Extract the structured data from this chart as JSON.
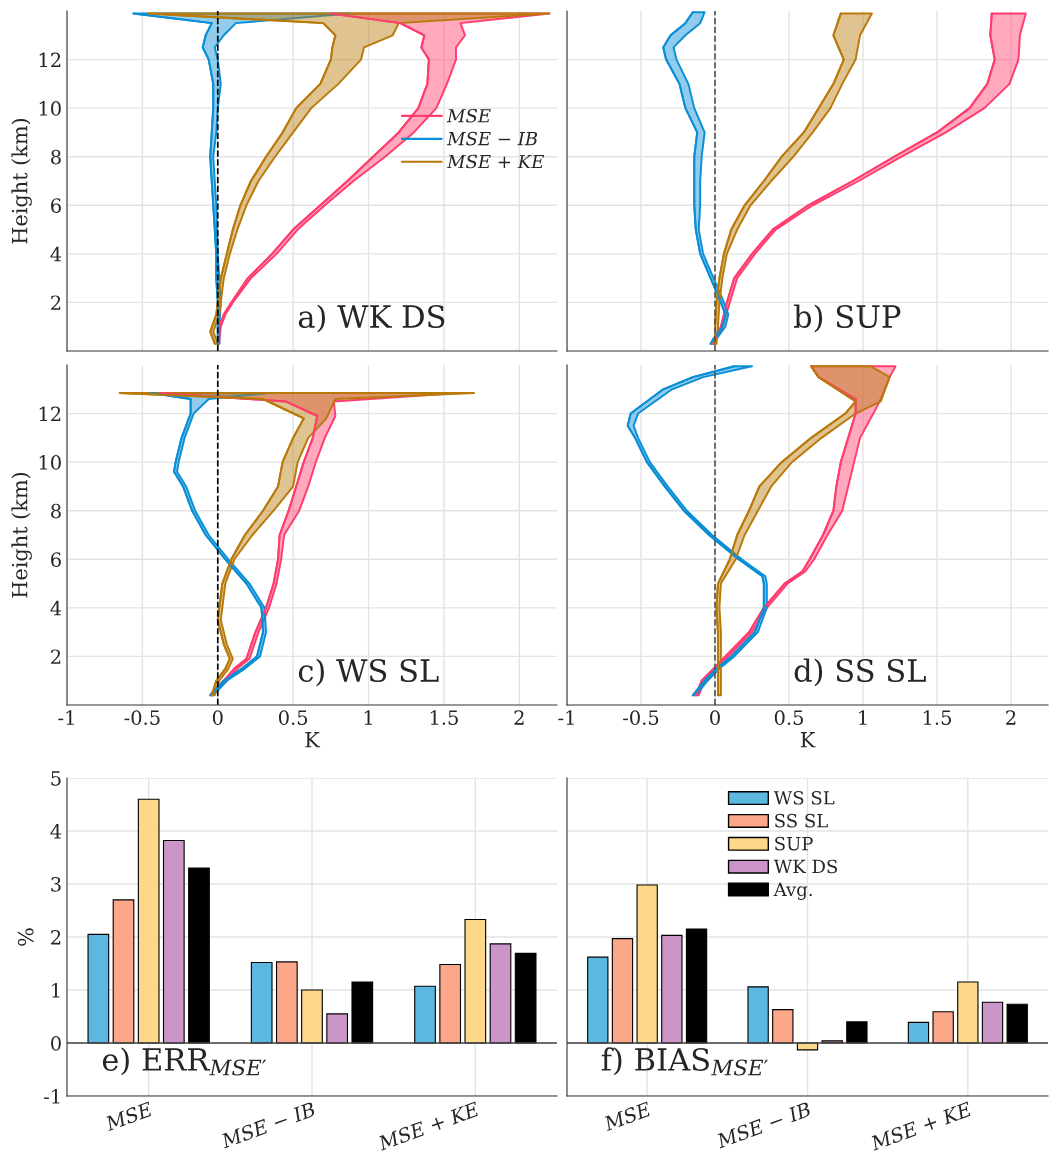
{
  "chart_data": [
    {
      "type": "line",
      "orientation": "horizontal",
      "annotations": [
        "a) WK DS"
      ],
      "ylabel": "Height (km)",
      "xlim": [
        -1,
        2.25
      ],
      "ylim": [
        0,
        14
      ],
      "xticks": [
        -1,
        -0.5,
        0,
        0.5,
        1,
        1.5,
        2
      ],
      "yticks": [
        2,
        4,
        6,
        8,
        10,
        12
      ],
      "tick_labels": "y",
      "grid": true,
      "legend": "center right",
      "ref_lines": [
        {
          "axis": "x",
          "value": 0,
          "color": "#000000",
          "line_style": "dashed"
        }
      ],
      "series": [
        {
          "name": "MSE",
          "color": "#ff3d6e",
          "x": [
            0.3,
            1,
            1.5,
            2,
            3,
            4,
            5,
            6,
            7,
            8,
            9,
            10,
            11,
            12,
            12.5,
            13,
            13.5,
            13.9
          ],
          "values": [
            0,
            0.01,
            0.04,
            0.09,
            0.2,
            0.36,
            0.5,
            0.68,
            0.86,
            1.03,
            1.2,
            1.33,
            1.39,
            1.4,
            1.35,
            1.37,
            1.21,
            0.75
          ],
          "lower": [
            0,
            0.01,
            0.04,
            0.09,
            0.2,
            0.36,
            0.5,
            0.68,
            0.86,
            1.03,
            1.2,
            1.33,
            1.39,
            1.4,
            1.35,
            1.37,
            1.21,
            0.75
          ],
          "upper": [
            0.01,
            0.02,
            0.05,
            0.1,
            0.22,
            0.39,
            0.53,
            0.71,
            0.9,
            1.11,
            1.3,
            1.45,
            1.52,
            1.58,
            1.58,
            1.64,
            1.61,
            2.2
          ]
        },
        {
          "name": "MSE − IB",
          "color": "#0a8fd6",
          "x": [
            0.3,
            1,
            2,
            3,
            4,
            6,
            8,
            9,
            10,
            11,
            12,
            12.5,
            13,
            13.5,
            13.9
          ],
          "values": [
            0,
            0,
            0,
            -0.01,
            -0.01,
            -0.03,
            -0.05,
            -0.04,
            -0.03,
            -0.03,
            -0.06,
            -0.1,
            -0.08,
            -0.04,
            -0.56
          ],
          "lower": [
            0,
            0,
            0,
            -0.01,
            -0.01,
            -0.03,
            -0.05,
            -0.04,
            -0.03,
            -0.03,
            -0.06,
            -0.1,
            -0.08,
            -0.04,
            -0.56
          ],
          "upper": [
            0.01,
            0.01,
            0.02,
            0.01,
            0.0,
            -0.01,
            -0.03,
            -0.01,
            0.0,
            0.02,
            0.0,
            -0.02,
            0.04,
            0.12,
            0.88
          ]
        },
        {
          "name": "MSE + KE",
          "color": "#b97a0a",
          "x": [
            0.3,
            0.8,
            1.5,
            2,
            3,
            4,
            5,
            6,
            7,
            8,
            9,
            10,
            11,
            12,
            12.5,
            13,
            13.5,
            13.9
          ],
          "values": [
            -0.02,
            -0.05,
            -0.01,
            0.0,
            0.02,
            0.06,
            0.1,
            0.15,
            0.22,
            0.32,
            0.43,
            0.52,
            0.68,
            0.75,
            0.76,
            0.78,
            0.7,
            -0.46
          ],
          "lower": [
            -0.02,
            -0.05,
            -0.01,
            0.0,
            0.02,
            0.06,
            0.1,
            0.15,
            0.22,
            0.32,
            0.43,
            0.52,
            0.68,
            0.75,
            0.76,
            0.78,
            0.7,
            -0.46
          ],
          "upper": [
            0.0,
            -0.03,
            0.01,
            0.02,
            0.04,
            0.08,
            0.13,
            0.19,
            0.27,
            0.38,
            0.5,
            0.62,
            0.8,
            0.95,
            0.97,
            1.16,
            1.2,
            2.2
          ]
        }
      ]
    },
    {
      "type": "line",
      "orientation": "horizontal",
      "annotations": [
        "b) SUP"
      ],
      "xlim": [
        -1,
        2.25
      ],
      "ylim": [
        0,
        14
      ],
      "xticks": [
        -1,
        -0.5,
        0,
        0.5,
        1,
        1.5,
        2
      ],
      "yticks": [
        2,
        4,
        6,
        8,
        10,
        12
      ],
      "tick_labels": false,
      "grid": true,
      "ref_lines": [
        {
          "axis": "x",
          "value": 0,
          "color": "#555555",
          "line_style": "dashed"
        }
      ],
      "series": [
        {
          "color": "#ff3d6e",
          "x": [
            0.3,
            0.5,
            1,
            2,
            3,
            4,
            5,
            6,
            7,
            8,
            9,
            10,
            11,
            12,
            13,
            13.9
          ],
          "values": [
            -0.02,
            0,
            0.04,
            0.08,
            0.13,
            0.25,
            0.39,
            0.63,
            0.93,
            1.21,
            1.5,
            1.72,
            1.84,
            1.89,
            1.86,
            1.87
          ],
          "lower": [
            -0.02,
            0,
            0.04,
            0.08,
            0.13,
            0.25,
            0.39,
            0.63,
            0.93,
            1.21,
            1.5,
            1.72,
            1.84,
            1.89,
            1.86,
            1.87
          ],
          "upper": [
            -0.01,
            0.01,
            0.05,
            0.1,
            0.15,
            0.27,
            0.41,
            0.66,
            0.97,
            1.26,
            1.56,
            1.82,
            1.99,
            2.05,
            2.06,
            2.1
          ]
        },
        {
          "color": "#0a8fd6",
          "x": [
            0.3,
            0.5,
            1,
            1.5,
            2,
            3,
            4,
            5,
            6,
            7,
            8,
            9,
            10,
            11,
            12,
            12.5,
            13,
            13.5,
            13.95
          ],
          "values": [
            -0.03,
            -0.01,
            0.05,
            0.07,
            0.04,
            -0.03,
            -0.1,
            -0.13,
            -0.14,
            -0.14,
            -0.14,
            -0.12,
            -0.2,
            -0.24,
            -0.33,
            -0.35,
            -0.3,
            -0.2,
            -0.15
          ],
          "lower": [
            -0.03,
            -0.01,
            0.05,
            0.07,
            0.04,
            -0.03,
            -0.1,
            -0.13,
            -0.14,
            -0.14,
            -0.14,
            -0.12,
            -0.2,
            -0.24,
            -0.33,
            -0.35,
            -0.3,
            -0.2,
            -0.15
          ],
          "upper": [
            -0.01,
            0.01,
            0.07,
            0.09,
            0.06,
            -0.01,
            -0.08,
            -0.11,
            -0.1,
            -0.1,
            -0.09,
            -0.07,
            -0.14,
            -0.18,
            -0.26,
            -0.28,
            -0.2,
            -0.1,
            -0.07
          ]
        },
        {
          "color": "#b97a0a",
          "x": [
            0.3,
            1,
            2,
            3,
            4,
            5,
            6,
            7,
            8,
            9,
            10,
            11,
            12,
            13,
            13.9
          ],
          "values": [
            0,
            0,
            0.01,
            0.03,
            0.06,
            0.11,
            0.2,
            0.33,
            0.45,
            0.6,
            0.7,
            0.8,
            0.87,
            0.8,
            0.85
          ],
          "lower": [
            0,
            0,
            0.01,
            0.03,
            0.06,
            0.11,
            0.2,
            0.33,
            0.45,
            0.6,
            0.7,
            0.8,
            0.87,
            0.8,
            0.85
          ],
          "upper": [
            0.01,
            0.02,
            0.03,
            0.05,
            0.08,
            0.15,
            0.24,
            0.38,
            0.53,
            0.66,
            0.78,
            0.86,
            0.95,
            0.98,
            1.06
          ]
        }
      ]
    },
    {
      "type": "line",
      "orientation": "horizontal",
      "annotations": [
        "c) WS SL"
      ],
      "xlabel": "K",
      "ylabel": "Height (km)",
      "xlim": [
        -1,
        2.25
      ],
      "ylim": [
        0,
        14
      ],
      "xticks": [
        -1,
        -0.5,
        0,
        0.5,
        1,
        1.5,
        2
      ],
      "yticks": [
        2,
        4,
        6,
        8,
        10,
        12
      ],
      "grid": true,
      "ref_lines": [
        {
          "axis": "x",
          "value": 0,
          "color": "#000000",
          "line_style": "dashed"
        }
      ],
      "series": [
        {
          "color": "#ff3d6e",
          "x": [
            0.5,
            1,
            1.5,
            1.9,
            3,
            4,
            5,
            6,
            7,
            8,
            9,
            10,
            11,
            11.9,
            12.5,
            12.85
          ],
          "values": [
            -0.04,
            0.04,
            0.11,
            0.19,
            0.25,
            0.32,
            0.37,
            0.4,
            0.41,
            0.47,
            0.52,
            0.57,
            0.63,
            0.66,
            0.45,
            -0.38
          ],
          "lower": [
            -0.04,
            0.04,
            0.11,
            0.19,
            0.25,
            0.32,
            0.37,
            0.4,
            0.41,
            0.47,
            0.52,
            0.57,
            0.63,
            0.66,
            0.45,
            -0.38
          ],
          "upper": [
            -0.02,
            0.06,
            0.13,
            0.21,
            0.27,
            0.34,
            0.39,
            0.42,
            0.44,
            0.54,
            0.6,
            0.65,
            0.71,
            0.78,
            0.77,
            1.59
          ]
        },
        {
          "color": "#0a8fd6",
          "x": [
            0.4,
            1,
            1.5,
            2,
            3,
            4,
            5,
            6,
            7,
            8,
            9,
            9.6,
            10,
            11,
            12,
            12.6,
            12.85
          ],
          "values": [
            -0.05,
            0.04,
            0.16,
            0.26,
            0.3,
            0.29,
            0.19,
            0.05,
            -0.08,
            -0.17,
            -0.23,
            -0.29,
            -0.28,
            -0.24,
            -0.18,
            -0.18,
            -0.44
          ],
          "lower": [
            -0.05,
            0.04,
            0.16,
            0.26,
            0.3,
            0.29,
            0.19,
            0.05,
            -0.08,
            -0.17,
            -0.23,
            -0.29,
            -0.28,
            -0.24,
            -0.18,
            -0.18,
            -0.44
          ],
          "upper": [
            -0.03,
            0.06,
            0.18,
            0.28,
            0.32,
            0.31,
            0.21,
            0.07,
            -0.06,
            -0.15,
            -0.21,
            -0.27,
            -0.26,
            -0.22,
            -0.16,
            -0.06,
            0.34
          ]
        },
        {
          "color": "#b97a0a",
          "x": [
            0.4,
            1,
            1.5,
            1.9,
            2.5,
            3.5,
            4,
            5,
            6,
            7,
            8,
            9,
            10,
            11,
            11.8,
            12.6,
            12.85
          ],
          "values": [
            -0.04,
            -0.01,
            0.05,
            0.08,
            0.04,
            0.0,
            0.01,
            0.03,
            0.09,
            0.18,
            0.3,
            0.4,
            0.43,
            0.5,
            0.57,
            0.3,
            -0.65
          ],
          "lower": [
            -0.04,
            -0.01,
            0.05,
            0.08,
            0.04,
            0.0,
            0.01,
            0.03,
            0.09,
            0.18,
            0.3,
            0.4,
            0.43,
            0.5,
            0.57,
            0.3,
            -0.65
          ],
          "upper": [
            -0.02,
            0.01,
            0.07,
            0.1,
            0.06,
            0.02,
            0.03,
            0.05,
            0.11,
            0.23,
            0.37,
            0.5,
            0.53,
            0.6,
            0.72,
            0.78,
            1.7
          ]
        }
      ]
    },
    {
      "type": "line",
      "orientation": "horizontal",
      "annotations": [
        "d) SS SL"
      ],
      "xlabel": "K",
      "xlim": [
        -1,
        2.25
      ],
      "ylim": [
        0,
        14
      ],
      "xticks": [
        -1,
        -0.5,
        0,
        0.5,
        1,
        1.5,
        2
      ],
      "yticks": [
        2,
        4,
        6,
        8,
        10,
        12
      ],
      "tick_labels": "x",
      "grid": true,
      "ref_lines": [
        {
          "axis": "x",
          "value": 0,
          "color": "#555555",
          "line_style": "dashed"
        }
      ],
      "series": [
        {
          "color": "#ff3d6e",
          "x": [
            0.4,
            1,
            1.5,
            2,
            3,
            4,
            5,
            5.5,
            6,
            7,
            8,
            9,
            10,
            11,
            12,
            12.6,
            13.5,
            13.95
          ],
          "values": [
            -0.13,
            -0.09,
            -0.01,
            0.07,
            0.23,
            0.33,
            0.47,
            0.59,
            0.64,
            0.73,
            0.8,
            0.82,
            0.85,
            0.9,
            0.95,
            0.95,
            0.7,
            0.65
          ],
          "lower": [
            -0.13,
            -0.09,
            -0.01,
            0.07,
            0.23,
            0.33,
            0.47,
            0.59,
            0.64,
            0.73,
            0.8,
            0.82,
            0.85,
            0.9,
            0.95,
            0.95,
            0.7,
            0.65
          ],
          "upper": [
            -0.11,
            -0.07,
            0.01,
            0.09,
            0.25,
            0.35,
            0.49,
            0.61,
            0.67,
            0.76,
            0.86,
            0.9,
            0.94,
            0.98,
            1.07,
            1.12,
            1.18,
            1.22
          ]
        },
        {
          "color": "#0a8fd6",
          "x": [
            0.4,
            1,
            1.5,
            2,
            3,
            4,
            5,
            5.3,
            6,
            7,
            8,
            9,
            10,
            11,
            11.5,
            12,
            13,
            13.5,
            13.95
          ],
          "values": [
            -0.15,
            -0.07,
            0.01,
            0.11,
            0.27,
            0.33,
            0.33,
            0.32,
            0.16,
            -0.04,
            -0.21,
            -0.34,
            -0.46,
            -0.54,
            -0.59,
            -0.57,
            -0.35,
            -0.15,
            0.13
          ],
          "lower": [
            -0.15,
            -0.07,
            0.01,
            0.11,
            0.27,
            0.33,
            0.33,
            0.32,
            0.16,
            -0.04,
            -0.21,
            -0.34,
            -0.46,
            -0.54,
            -0.59,
            -0.57,
            -0.35,
            -0.15,
            0.13
          ],
          "upper": [
            -0.13,
            -0.05,
            0.03,
            0.13,
            0.29,
            0.35,
            0.35,
            0.34,
            0.18,
            -0.02,
            -0.19,
            -0.32,
            -0.44,
            -0.52,
            -0.55,
            -0.52,
            -0.29,
            -0.08,
            0.25
          ]
        },
        {
          "color": "#b97a0a",
          "x": [
            0.4,
            1,
            2,
            3,
            4,
            5,
            6,
            7,
            8,
            9,
            10,
            11,
            12,
            12.5,
            13.5,
            13.95
          ],
          "values": [
            0.02,
            0.02,
            0.02,
            0.02,
            0.01,
            0.02,
            0.1,
            0.15,
            0.23,
            0.3,
            0.45,
            0.65,
            0.88,
            0.95,
            0.7,
            0.65
          ],
          "lower": [
            0.02,
            0.02,
            0.02,
            0.02,
            0.01,
            0.02,
            0.1,
            0.15,
            0.23,
            0.3,
            0.45,
            0.65,
            0.88,
            0.95,
            0.7,
            0.65
          ],
          "upper": [
            0.04,
            0.04,
            0.04,
            0.04,
            0.03,
            0.04,
            0.14,
            0.2,
            0.29,
            0.38,
            0.52,
            0.72,
            0.95,
            1.12,
            1.18,
            1.05
          ]
        }
      ]
    },
    {
      "type": "bar",
      "annotations": [
        "e) ERR$_{MSE′}$"
      ],
      "ylabel": "%",
      "categories": [
        "MSE",
        "MSE − IB",
        "MSE + KE"
      ],
      "ylim": [
        -1,
        5
      ],
      "yticks": [
        -1,
        0,
        1,
        2,
        3,
        4,
        5
      ],
      "grid": true,
      "series": [
        {
          "color": "#5cb8e0",
          "values": [
            2.05,
            1.52,
            1.07
          ]
        },
        {
          "color": "#fca78a",
          "values": [
            2.7,
            1.53,
            1.48
          ]
        },
        {
          "color": "#fed88a",
          "values": [
            4.6,
            1.0,
            2.33
          ]
        },
        {
          "color": "#cc95c8",
          "values": [
            3.82,
            0.55,
            1.87
          ]
        },
        {
          "color": "#000000",
          "values": [
            3.3,
            1.15,
            1.69
          ]
        }
      ]
    },
    {
      "type": "bar",
      "annotations": [
        "f) BIAS$_{MSE′}$"
      ],
      "categories": [
        "MSE",
        "MSE − IB",
        "MSE + KE"
      ],
      "ylim": [
        -1,
        5
      ],
      "yticks": [
        -1,
        0,
        1,
        2,
        3,
        4,
        5
      ],
      "tick_labels": "x",
      "grid": true,
      "legend": "top",
      "series": [
        {
          "name": "WS SL",
          "color": "#5cb8e0",
          "values": [
            1.62,
            1.06,
            0.39
          ]
        },
        {
          "name": "SS SL",
          "color": "#fca78a",
          "values": [
            1.97,
            0.63,
            0.59
          ]
        },
        {
          "name": "SUP",
          "color": "#fed88a",
          "values": [
            2.98,
            -0.13,
            1.15
          ]
        },
        {
          "name": "WK DS",
          "color": "#cc95c8",
          "values": [
            2.03,
            0.04,
            0.77
          ]
        },
        {
          "name": "Avg.",
          "color": "#000000",
          "values": [
            2.15,
            0.4,
            0.73
          ]
        }
      ]
    }
  ]
}
